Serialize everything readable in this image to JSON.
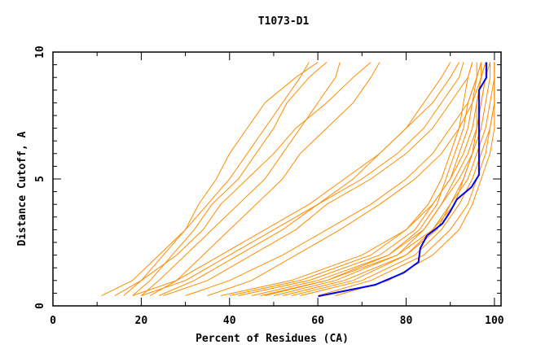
{
  "chart_data": {
    "type": "line",
    "title": "T1073-D1",
    "xlabel": "Percent of Residues (CA)",
    "ylabel": "Distance Cutoff, A",
    "xlim": [
      0,
      101.5
    ],
    "ylim": [
      0,
      10
    ],
    "xticks": [
      0,
      20,
      40,
      60,
      80,
      100
    ],
    "yticks": [
      0,
      5,
      10
    ],
    "grid": false,
    "legend": "none",
    "colors": {
      "models": "#ff8c00",
      "highlight": "#0000ff"
    },
    "cutoffs": [
      0.4,
      1,
      2,
      3,
      4,
      5,
      6,
      7,
      8,
      9,
      9.6
    ],
    "series": [
      {
        "values": [
          14,
          20,
          25,
          30,
          33,
          37,
          40,
          44,
          48,
          55,
          60
        ]
      },
      {
        "values": [
          18,
          22,
          27,
          32,
          36,
          42,
          46,
          50,
          53,
          58,
          62
        ]
      },
      {
        "values": [
          20,
          24,
          30,
          36,
          42,
          48,
          52,
          56,
          60,
          64,
          65
        ]
      },
      {
        "values": [
          16,
          20,
          28,
          34,
          38,
          44,
          50,
          55,
          62,
          68,
          72
        ]
      },
      {
        "values": [
          22,
          28,
          34,
          40,
          46,
          52,
          56,
          62,
          68,
          72,
          74
        ]
      },
      {
        "values": [
          11,
          18,
          24,
          30,
          35,
          40,
          44,
          48,
          52,
          56,
          58
        ]
      },
      {
        "values": [
          20,
          30,
          40,
          50,
          60,
          70,
          78,
          84,
          88,
          92,
          93
        ]
      },
      {
        "values": [
          25,
          35,
          45,
          55,
          62,
          72,
          80,
          86,
          90,
          94,
          95
        ]
      },
      {
        "values": [
          30,
          40,
          52,
          62,
          72,
          80,
          86,
          90,
          94,
          96,
          97
        ]
      },
      {
        "values": [
          18,
          28,
          38,
          48,
          58,
          66,
          74,
          80,
          86,
          90,
          92
        ]
      },
      {
        "values": [
          35,
          45,
          55,
          65,
          74,
          82,
          88,
          92,
          95,
          97,
          98
        ]
      },
      {
        "values": [
          24,
          32,
          42,
          52,
          60,
          68,
          74,
          80,
          84,
          88,
          90
        ]
      },
      {
        "values": [
          52,
          66,
          80,
          86,
          90,
          94,
          96,
          98,
          99,
          100,
          100
        ]
      },
      {
        "values": [
          56,
          70,
          82,
          88,
          92,
          95,
          97,
          99,
          100,
          100,
          100
        ]
      },
      {
        "values": [
          48,
          62,
          78,
          84,
          88,
          92,
          95,
          97,
          98,
          99,
          99
        ]
      },
      {
        "values": [
          60,
          72,
          84,
          90,
          94,
          96,
          98,
          99,
          100,
          100,
          100
        ]
      },
      {
        "values": [
          45,
          60,
          76,
          84,
          88,
          91,
          94,
          96,
          97,
          98,
          98
        ]
      },
      {
        "values": [
          50,
          64,
          78,
          86,
          91,
          93,
          95,
          96,
          97,
          98,
          99
        ]
      },
      {
        "values": [
          54,
          68,
          80,
          87,
          90,
          93,
          95,
          96,
          96,
          97,
          97
        ]
      },
      {
        "values": [
          42,
          58,
          74,
          82,
          86,
          90,
          92,
          94,
          95,
          96,
          96
        ]
      },
      {
        "values": [
          64,
          76,
          86,
          92,
          95,
          97,
          99,
          100,
          100,
          100,
          100
        ]
      },
      {
        "values": [
          40,
          56,
          72,
          80,
          85,
          88,
          90,
          92,
          93,
          94,
          95
        ]
      },
      {
        "values": [
          47,
          62,
          76,
          83,
          87,
          89,
          91,
          93,
          94,
          96,
          97
        ]
      },
      {
        "values": [
          38,
          54,
          70,
          80,
          86,
          90,
          93,
          95,
          96,
          97,
          98
        ]
      }
    ],
    "highlight": {
      "points": [
        [
          60.1,
          0.38
        ],
        [
          73.0,
          0.83
        ],
        [
          79.5,
          1.31
        ],
        [
          82.8,
          1.73
        ],
        [
          83.2,
          2.27
        ],
        [
          84.7,
          2.76
        ],
        [
          88.2,
          3.24
        ],
        [
          90.0,
          3.72
        ],
        [
          91.5,
          4.2
        ],
        [
          94.8,
          4.68
        ],
        [
          96.5,
          5.16
        ],
        [
          96.5,
          8.5
        ],
        [
          98.2,
          9.0
        ],
        [
          98.2,
          9.6
        ]
      ]
    }
  }
}
